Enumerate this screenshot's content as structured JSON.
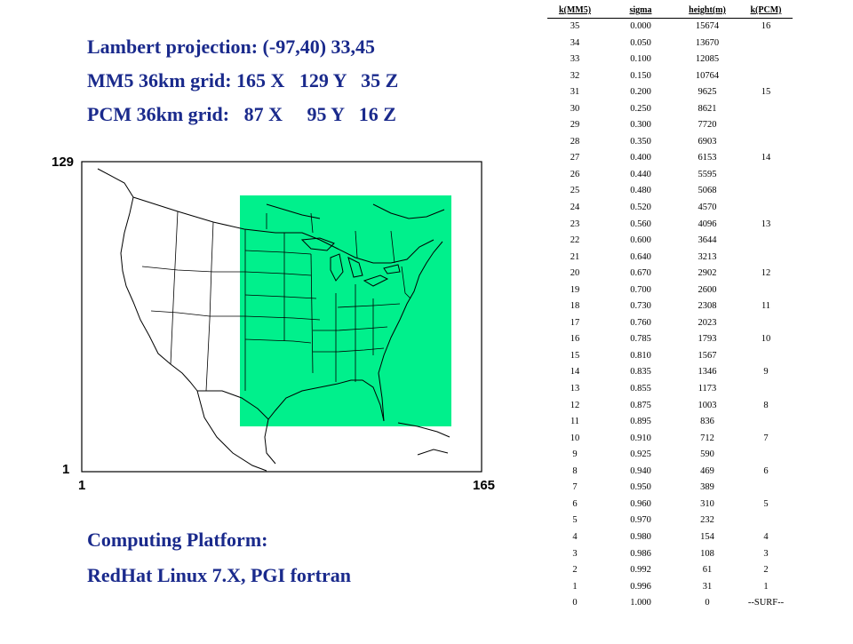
{
  "header": {
    "line1": "Lambert projection: (-97,40) 33,45",
    "line2": "MM5 36km grid: 165 X   129 Y   35 Z",
    "line3": "PCM 36km grid:   87 X     95 Y   16 Z"
  },
  "map": {
    "y_top_label": "129",
    "y_bottom_label": "1",
    "x_left_label": "1",
    "x_right_label": "165",
    "land_color": "#ffffff",
    "pcm_domain_color": "#00f08c"
  },
  "platform": {
    "title": "Computing Platform:",
    "detail": "RedHat Linux 7.X, PGI fortran"
  },
  "table": {
    "columns": [
      "k(MM5)",
      "sigma",
      "height(m)",
      "k(PCM)"
    ],
    "rows": [
      [
        "35",
        "0.000",
        "15674",
        "16"
      ],
      [
        "34",
        "0.050",
        "13670",
        ""
      ],
      [
        "33",
        "0.100",
        "12085",
        ""
      ],
      [
        "32",
        "0.150",
        "10764",
        ""
      ],
      [
        "31",
        "0.200",
        "9625",
        "15"
      ],
      [
        "30",
        "0.250",
        "8621",
        ""
      ],
      [
        "29",
        "0.300",
        "7720",
        ""
      ],
      [
        "28",
        "0.350",
        "6903",
        ""
      ],
      [
        "27",
        "0.400",
        "6153",
        "14"
      ],
      [
        "26",
        "0.440",
        "5595",
        ""
      ],
      [
        "25",
        "0.480",
        "5068",
        ""
      ],
      [
        "24",
        "0.520",
        "4570",
        ""
      ],
      [
        "23",
        "0.560",
        "4096",
        "13"
      ],
      [
        "22",
        "0.600",
        "3644",
        ""
      ],
      [
        "21",
        "0.640",
        "3213",
        ""
      ],
      [
        "20",
        "0.670",
        "2902",
        "12"
      ],
      [
        "19",
        "0.700",
        "2600",
        ""
      ],
      [
        "18",
        "0.730",
        "2308",
        "11"
      ],
      [
        "17",
        "0.760",
        "2023",
        ""
      ],
      [
        "16",
        "0.785",
        "1793",
        "10"
      ],
      [
        "15",
        "0.810",
        "1567",
        ""
      ],
      [
        "14",
        "0.835",
        "1346",
        "9"
      ],
      [
        "13",
        "0.855",
        "1173",
        ""
      ],
      [
        "12",
        "0.875",
        "1003",
        "8"
      ],
      [
        "11",
        "0.895",
        "836",
        ""
      ],
      [
        "10",
        "0.910",
        "712",
        "7"
      ],
      [
        "9",
        "0.925",
        "590",
        ""
      ],
      [
        "8",
        "0.940",
        "469",
        "6"
      ],
      [
        "7",
        "0.950",
        "389",
        ""
      ],
      [
        "6",
        "0.960",
        "310",
        "5"
      ],
      [
        "5",
        "0.970",
        "232",
        ""
      ],
      [
        "4",
        "0.980",
        "154",
        "4"
      ],
      [
        "3",
        "0.986",
        "108",
        "3"
      ],
      [
        "2",
        "0.992",
        "61",
        "2"
      ],
      [
        "1",
        "0.996",
        "31",
        "1"
      ],
      [
        "0",
        "1.000",
        "0",
        "--SURF--"
      ]
    ]
  }
}
